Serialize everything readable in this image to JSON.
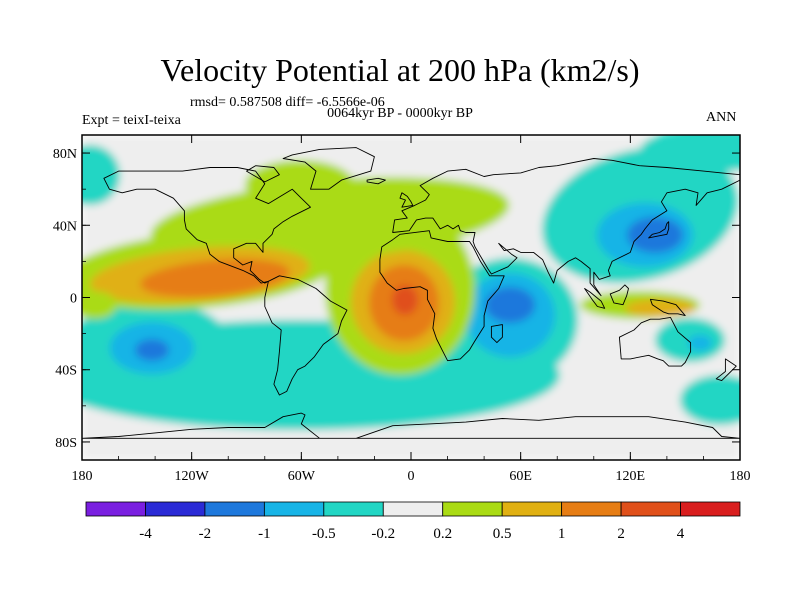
{
  "title": "Velocity Potential at 200 hPa (km2/s)",
  "stats": "rmsd= 0.587508 diff= -6.5566e-06",
  "period": "0064kyr BP - 0000kyr BP",
  "experiment": "Expt = teixI-teixa",
  "season": "ANN",
  "axes": {
    "x_ticks": [
      "180",
      "120W",
      "60W",
      "0",
      "60E",
      "120E",
      "180"
    ],
    "y_ticks": [
      "80N",
      "40N",
      "0",
      "40S",
      "80S"
    ]
  },
  "colorbar": {
    "labels": [
      "-4",
      "-2",
      "-1",
      "-0.5",
      "-0.2",
      "0.2",
      "0.5",
      "1",
      "2",
      "4"
    ],
    "colors": [
      "#7a1fe0",
      "#2b2bd6",
      "#1e78dc",
      "#17b4e6",
      "#22d6c4",
      "#eeeeee",
      "#aadb14",
      "#e0b012",
      "#e67d14",
      "#e0501a",
      "#d91e1e"
    ]
  },
  "palette": {
    "neutral": "#eeeeee",
    "pos1": "#aadb14",
    "pos2": "#e0b012",
    "pos3": "#e67d14",
    "pos4": "#e0501a",
    "neg1": "#22d6c4",
    "neg2": "#17b4e6",
    "neg3": "#1e78dc"
  }
}
